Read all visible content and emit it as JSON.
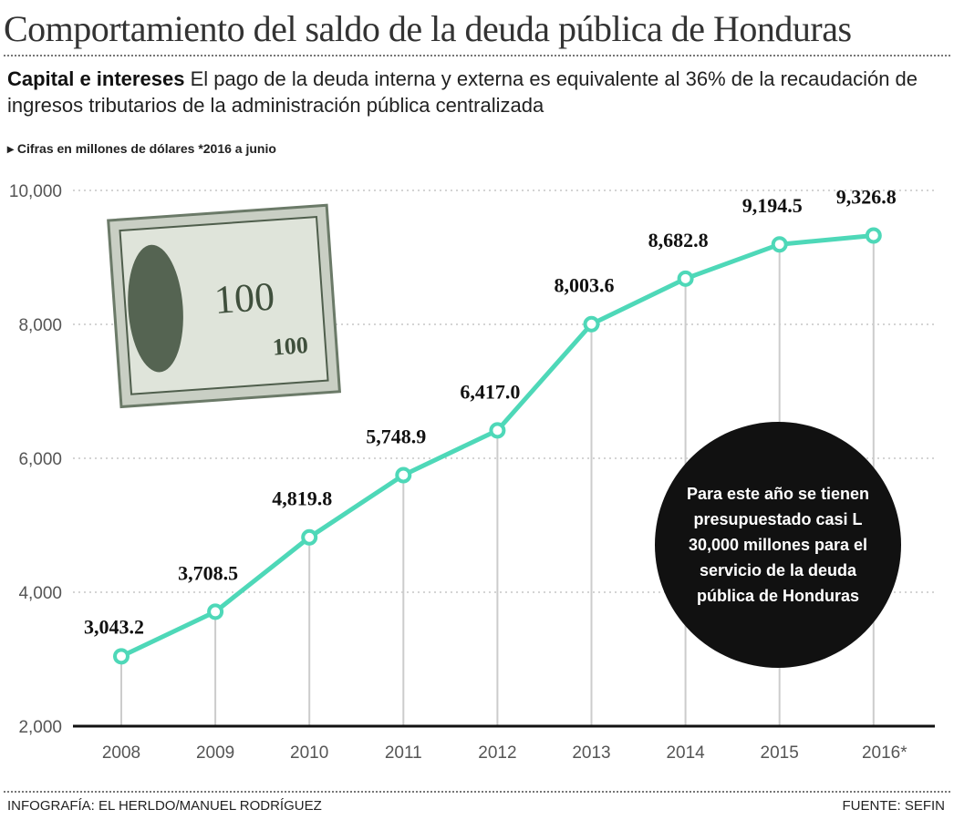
{
  "title": "Comportamiento del saldo de la deuda pública de Honduras",
  "subtitle_bold": "Capital e intereses",
  "subtitle": "El pago de la deuda interna y externa es equivalente al 36% de la recaudación de ingresos tributarios de la administración pública centralizada",
  "note": "Cifras en millones de dólares *2016 a junio",
  "bubble": "Para este año se tienen presupuestado casi L 30,000 millones para el servicio de la deuda pública de Honduras",
  "footer_left": "INFOGRAFÍA: EL HERLDO/MANUEL RODRÍGUEZ",
  "footer_right": "FUENTE: SEFIN",
  "money_text": "100",
  "colors": {
    "line": "#4ed8b8",
    "bubble": "#111111"
  },
  "chart_data": {
    "type": "line",
    "title": "Comportamiento del saldo de la deuda pública de Honduras",
    "xlabel": "",
    "ylabel": "Cifras en millones de dólares",
    "categories": [
      "2008",
      "2009",
      "2010",
      "2011",
      "2012",
      "2013",
      "2014",
      "2015",
      "2016*"
    ],
    "values": [
      3043.2,
      3708.5,
      4819.8,
      5748.9,
      6417.0,
      8003.6,
      8682.8,
      9194.5,
      9326.8
    ],
    "labels": [
      "3,043.2",
      "3,708.5",
      "4,819.8",
      "5,748.9",
      "6,417.0",
      "8,003.6",
      "8,682.8",
      "9,194.5",
      "9,326.8"
    ],
    "yticks": [
      2000,
      4000,
      6000,
      8000,
      10000
    ],
    "ytick_labels": [
      "2,000",
      "4,000",
      "6,000",
      "8,000",
      "10,000"
    ],
    "ylim": [
      2000,
      10000
    ],
    "grid": true
  }
}
